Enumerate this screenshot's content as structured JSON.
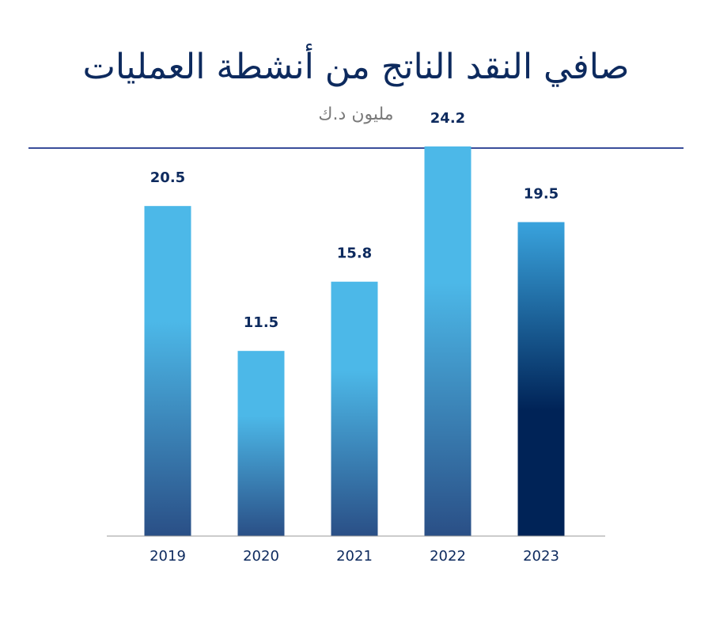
{
  "chart_data": {
    "type": "bar",
    "title": "صافي النقد الناتج من أنشطة العمليات",
    "subtitle": "مليون د.ك",
    "categories": [
      "2019",
      "2020",
      "2021",
      "2022",
      "2023"
    ],
    "values": [
      20.5,
      11.5,
      15.8,
      24.2,
      19.5
    ],
    "value_labels": [
      "20.5",
      "11.5",
      "15.8",
      "24.2",
      "19.5"
    ],
    "ylim": [
      0,
      30
    ],
    "grid": false,
    "highlight_index": 4
  },
  "colors": {
    "title": "#0d2a5e",
    "subtitle": "#7a7a7a",
    "rule": "#3a4e9a",
    "bar_top": "#4cb8e8",
    "bar_bottom": "#2a4f86",
    "highlight_top": "#39a3dd",
    "highlight_bottom": "#002357",
    "axis": "#9a9a9a"
  }
}
